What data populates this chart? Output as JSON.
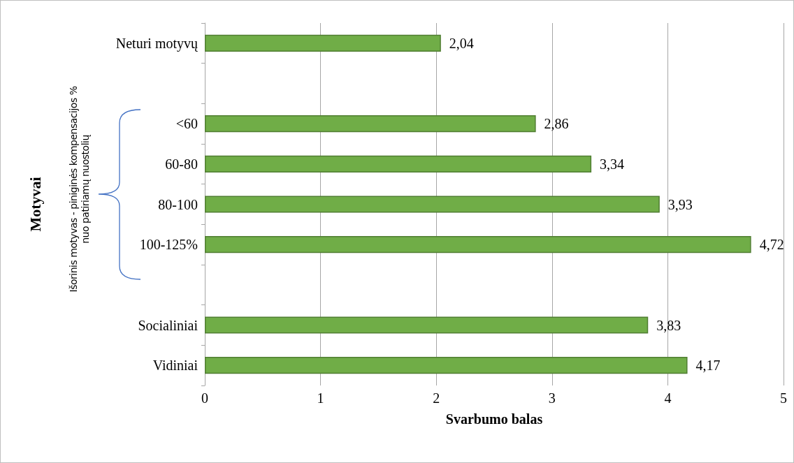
{
  "chart_data": {
    "type": "bar",
    "orientation": "horizontal",
    "categories": [
      "Neturi motyvų",
      null,
      "<60",
      "60-80",
      "80-100",
      "100-125%",
      null,
      "Socialiniai",
      "Vidiniai"
    ],
    "values": [
      2.04,
      null,
      2.86,
      3.34,
      3.93,
      4.72,
      null,
      3.83,
      4.17
    ],
    "value_labels": [
      "2,04",
      null,
      "2,86",
      "3,34",
      "3,93",
      "4,72",
      null,
      "3,83",
      "4,17"
    ],
    "color": "#70ad47",
    "xlim": [
      0,
      5
    ],
    "xticks": [
      0,
      1,
      2,
      3,
      4,
      5
    ],
    "xlabel": "Svarbumo balas",
    "ylabel": "Motyvai",
    "annotations": [
      "Išorinis motyvas - piniginės kompensacijos % nuo patiriamų nuostolių"
    ],
    "grid": "x"
  }
}
